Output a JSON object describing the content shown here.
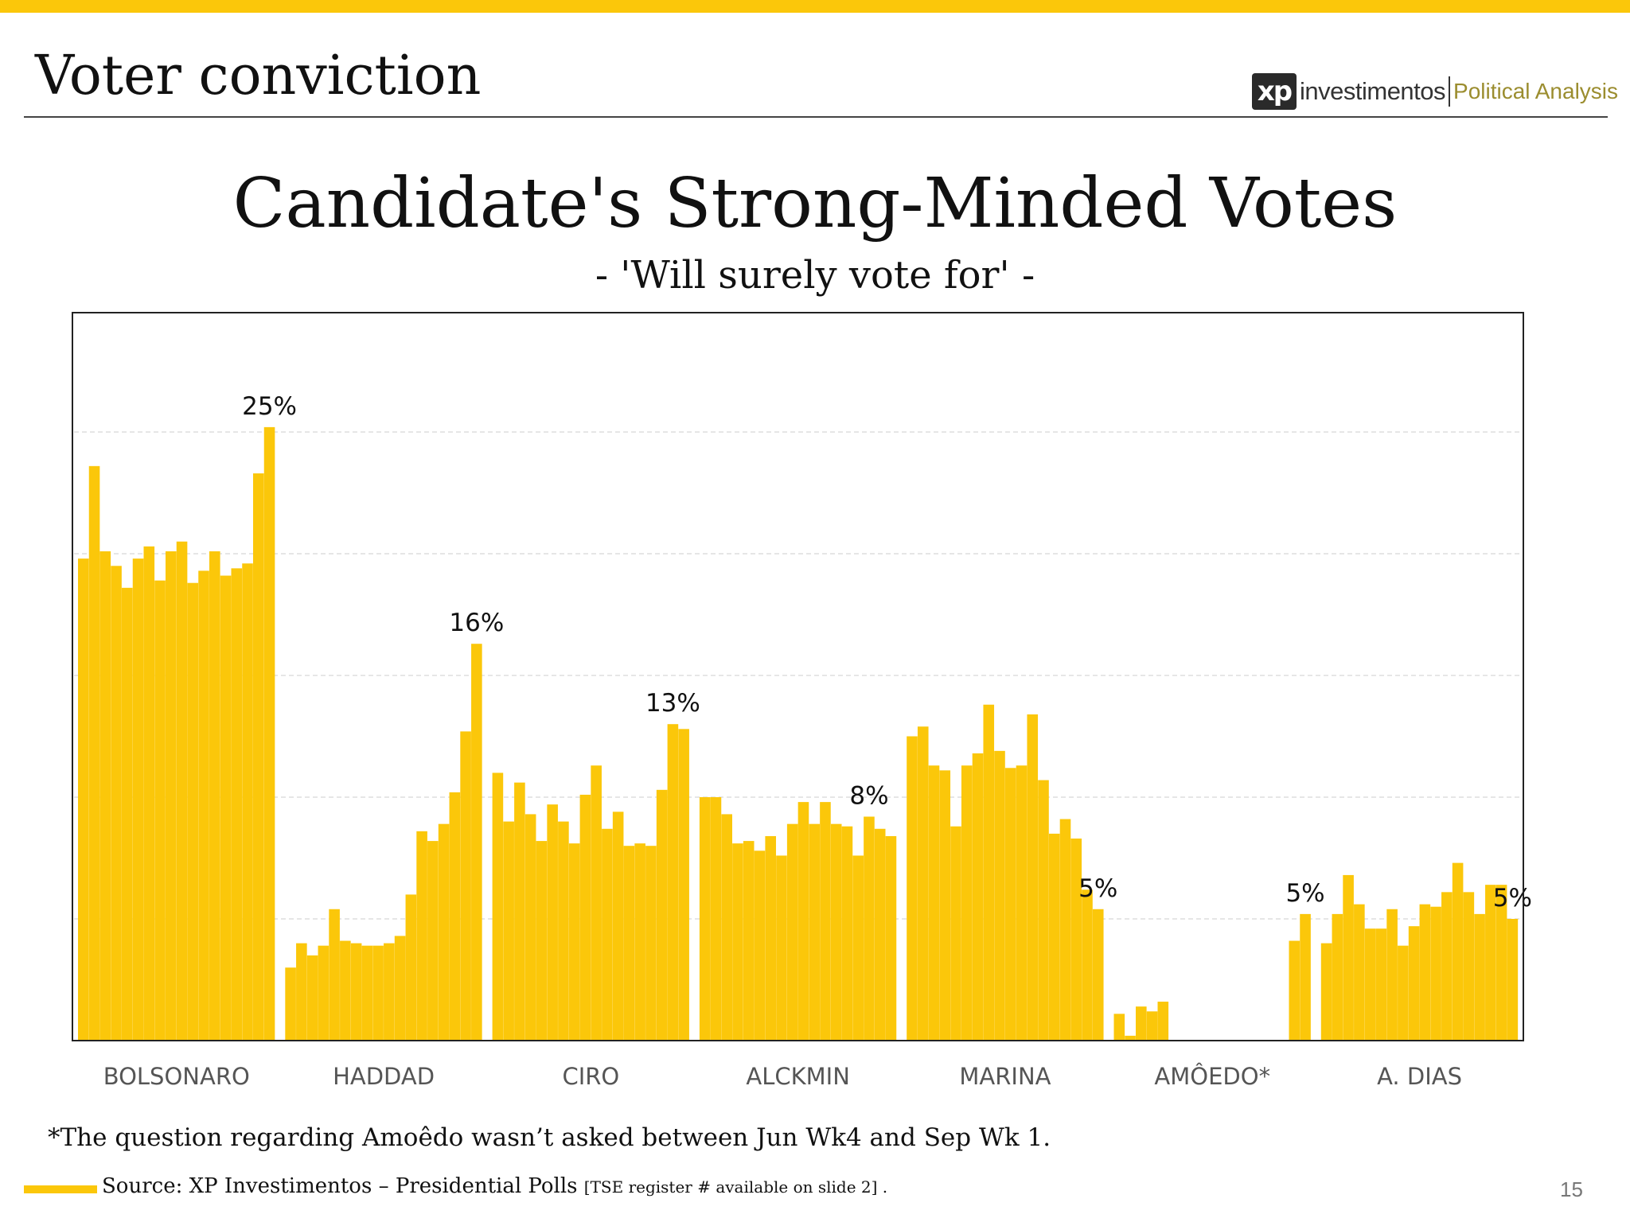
{
  "header": {
    "title": "Voter conviction",
    "logo_mark": "xp",
    "logo_word": "investimentos",
    "logo_sub": "Political Analysis"
  },
  "footer": {
    "footnote": "*The question regarding Amoêdo wasn’t asked between Jun Wk4 and Sep Wk 1.",
    "source_main": "Source: XP Investimentos – Presidential Polls",
    "source_small": "[TSE register # available on slide 2] .",
    "page_number": "15"
  },
  "colors": {
    "bar": "#fbc70a",
    "accent": "#fbc70a",
    "frame": "#222222",
    "gridline": "#dddddd",
    "label": "#555555"
  },
  "chart_data": {
    "type": "bar",
    "title": "Candidate's Strong-Minded Votes",
    "subtitle": "- 'Will surely vote for' -",
    "ylim": [
      0,
      30
    ],
    "grid": true,
    "gridlines": [
      5,
      10,
      15,
      20,
      25
    ],
    "legend": "none",
    "groups": [
      {
        "name": "BOLSONARO",
        "values": [
          19.8,
          23.6,
          20.1,
          19.5,
          18.6,
          19.8,
          20.3,
          18.9,
          20.1,
          20.5,
          18.8,
          19.3,
          20.1,
          19.1,
          19.4,
          19.6,
          23.3,
          25.2
        ],
        "label": "25%",
        "label_index": 17
      },
      {
        "name": "HADDAD",
        "values": [
          3.0,
          4.0,
          3.5,
          3.9,
          5.4,
          4.1,
          4.0,
          3.9,
          3.9,
          4.0,
          4.3,
          6.0,
          8.6,
          8.2,
          8.9,
          10.2,
          12.7,
          16.3
        ],
        "label": "16%",
        "label_index": 17
      },
      {
        "name": "CIRO",
        "values": [
          11.0,
          9.0,
          10.6,
          9.3,
          8.2,
          9.7,
          9.0,
          8.1,
          10.1,
          11.3,
          8.7,
          9.4,
          8.0,
          8.1,
          8.0,
          10.3,
          13.0,
          12.8
        ],
        "label": "13%",
        "label_index": 16
      },
      {
        "name": "ALCKMIN",
        "values": [
          10.0,
          10.0,
          9.3,
          8.1,
          8.2,
          7.8,
          8.4,
          7.6,
          8.9,
          9.8,
          8.9,
          9.8,
          8.9,
          8.8,
          7.6,
          9.2,
          8.7,
          8.4
        ],
        "label": "8%",
        "label_index": 15
      },
      {
        "name": "MARINA",
        "values": [
          12.5,
          12.9,
          11.3,
          11.1,
          8.8,
          11.3,
          11.8,
          13.8,
          11.9,
          11.2,
          11.3,
          13.4,
          10.7,
          8.5,
          9.1,
          8.3,
          6.2,
          5.4
        ],
        "label": "5%",
        "label_index": 17
      },
      {
        "name": "AMÔEDO*",
        "values": [
          1.1,
          0.2,
          1.4,
          1.2,
          1.6,
          null,
          null,
          null,
          null,
          null,
          null,
          null,
          null,
          null,
          null,
          null,
          4.1,
          5.2
        ],
        "label": "5%",
        "label_index": 17
      },
      {
        "name": "A. DIAS",
        "values": [
          4.0,
          5.2,
          6.8,
          5.6,
          4.6,
          4.6,
          5.4,
          3.9,
          4.7,
          5.6,
          5.5,
          6.1,
          7.3,
          6.1,
          5.2,
          6.4,
          6.4,
          5.0
        ],
        "label": "5%",
        "label_index": 17
      }
    ]
  }
}
